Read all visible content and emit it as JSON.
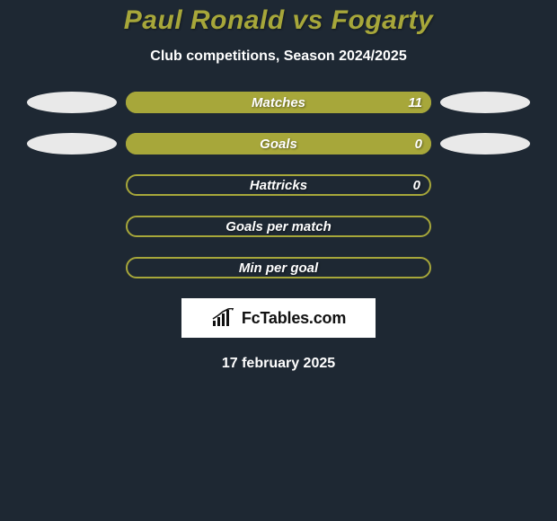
{
  "title": "Paul Ronald vs Fogarty",
  "subtitle": "Club competitions, Season 2024/2025",
  "date": "17 february 2025",
  "brand": {
    "name": "FcTables.com"
  },
  "colors": {
    "background": "#1e2833",
    "title": "#a7a73a",
    "text": "#ffffff",
    "ellipse_left": "#e9e9e9",
    "ellipse_right": "#e9e9e9",
    "bar_fill_right": "#a7a73a",
    "bar_empty": "#a7a73a",
    "bar_border": "#a7a73a"
  },
  "rows": [
    {
      "label": "Matches",
      "left_value": null,
      "right_value": "11",
      "show_left_ellipse": true,
      "show_right_ellipse": true,
      "left_pct": 0,
      "right_pct": 100,
      "mode": "fill"
    },
    {
      "label": "Goals",
      "left_value": null,
      "right_value": "0",
      "show_left_ellipse": true,
      "show_right_ellipse": true,
      "left_pct": 0,
      "right_pct": 100,
      "mode": "fill"
    },
    {
      "label": "Hattricks",
      "left_value": null,
      "right_value": "0",
      "show_left_ellipse": false,
      "show_right_ellipse": false,
      "left_pct": 0,
      "right_pct": 0,
      "mode": "outline"
    },
    {
      "label": "Goals per match",
      "left_value": null,
      "right_value": null,
      "show_left_ellipse": false,
      "show_right_ellipse": false,
      "left_pct": 0,
      "right_pct": 0,
      "mode": "outline"
    },
    {
      "label": "Min per goal",
      "left_value": null,
      "right_value": null,
      "show_left_ellipse": false,
      "show_right_ellipse": false,
      "left_pct": 0,
      "right_pct": 0,
      "mode": "outline"
    }
  ]
}
